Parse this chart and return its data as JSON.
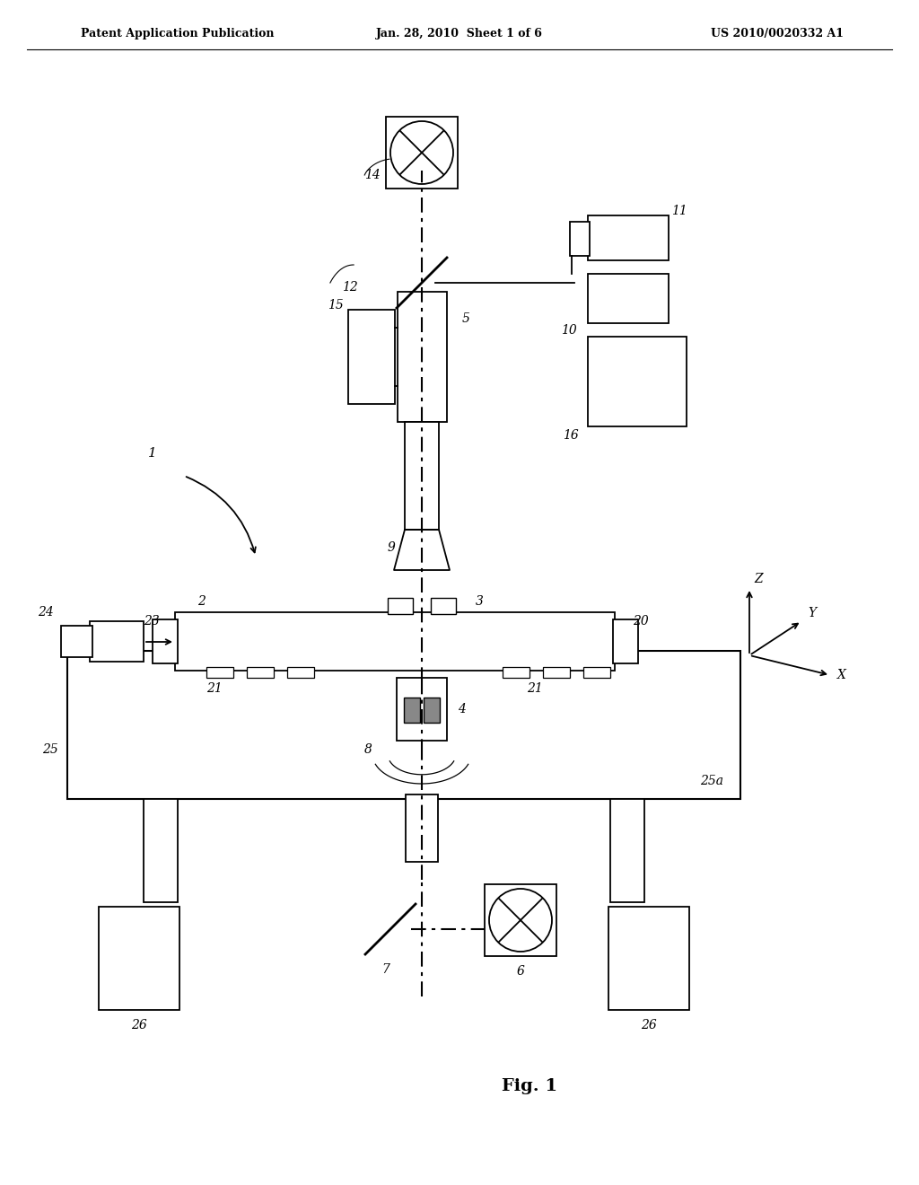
{
  "bg_color": "#ffffff",
  "header_left": "Patent Application Publication",
  "header_mid": "Jan. 28, 2010  Sheet 1 of 6",
  "header_right": "US 2010/0020332 A1",
  "fig_label": "Fig. 1"
}
